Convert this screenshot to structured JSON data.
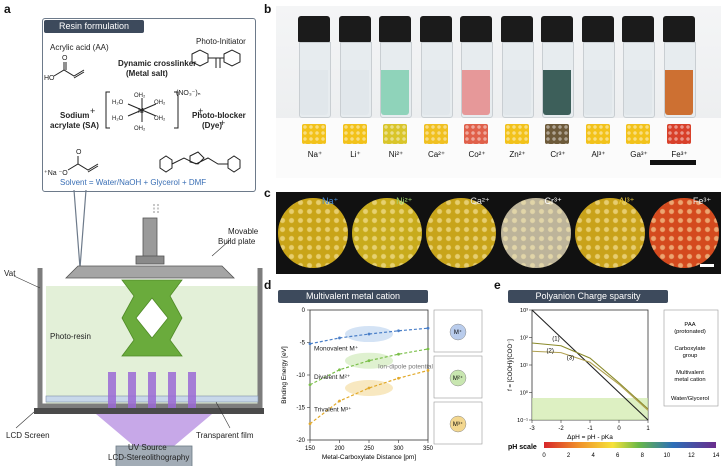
{
  "panels": {
    "a": {
      "letter": "a",
      "title": "Resin formulation",
      "acrylic_acid": "Acrylic acid (AA)",
      "crosslinker": "Dynamic crosslinker",
      "crosslinker_sub": "(Metal salt)",
      "photo_initiator": "Photo-Initiator",
      "sodium": "Sodium",
      "sodium2": "acrylate (SA)",
      "photo_blocker": "Photo-blocker",
      "photo_blocker_sub": "(Dye)",
      "nitrate": "(NO₃⁻)ₙ",
      "solvent": "Solvent = Water/NaOH + Glycerol + DMF",
      "movable": "Movable",
      "build_plate": "Build plate",
      "vat": "Vat",
      "photo_resin": "Photo-resin",
      "lcd_screen": "LCD Screen",
      "transparent_film": "Transparent film",
      "uv_source": "UV Source",
      "caption": "LCD-Stereolithography"
    },
    "b": {
      "letter": "b",
      "ions": [
        "Na⁺",
        "Li⁺",
        "Ni²⁺",
        "Ca²⁺",
        "Co²⁺",
        "Zn²⁺",
        "Cr³⁺",
        "Al³⁺",
        "Ga³⁺",
        "Fe³⁺"
      ],
      "vial_colors": [
        "#dfe6ea",
        "#dfe6ea",
        "#7fcfb0",
        "#dfe6ea",
        "#e58a8a",
        "#dfe6ea",
        "#1f4640",
        "#dfe6ea",
        "#dfe6ea",
        "#c85a10"
      ],
      "sample_colors": [
        "#f2c21a",
        "#f2c21a",
        "#d9c52a",
        "#f0c020",
        "#e0604a",
        "#f2c21a",
        "#6d5a3a",
        "#f2c21a",
        "#f2c21a",
        "#d8402a"
      ]
    },
    "c": {
      "letter": "c",
      "ions": [
        "Na⁺",
        "Ni²⁺",
        "Ca²⁺",
        "Cr³⁺",
        "Al³⁺",
        "Fe³⁺"
      ],
      "ion_colors": [
        "#4a8fd8",
        "#9fd46a",
        "#e8e8e8",
        "#ffffff",
        "#e8c63a",
        "#e8e8e8"
      ],
      "disc_colors": [
        "#c9a418",
        "#c8ab1c",
        "#c8a41a",
        "#bdb49a",
        "#c9a21a",
        "#d44a1e"
      ]
    },
    "d": {
      "letter": "d",
      "title": "Multivalent metal cation",
      "ylabel": "Binding Energy [eV]",
      "xlabel": "Metal-Carboxylate Distance [pm]",
      "monovalent": "Monovalent M⁺",
      "divalent": "Divalent M²⁺",
      "trivalent": "Trivalent M³⁺",
      "ion_dipole": "Ion-dipole potential",
      "schemes": [
        "M⁺",
        "M²⁺",
        "M³⁺"
      ]
    },
    "e": {
      "letter": "e",
      "title": "Polyanion Charge sparsity",
      "ylabel": "f = [COOH]/[COO⁻]",
      "xlabel": "ΔpH = pH - pKa",
      "curve_labels": [
        "(1)",
        "(2)",
        "(3)"
      ],
      "legend": [
        "PAA",
        "(protonated)",
        "Carboxylate",
        "group",
        "Multivalent",
        "metal cation",
        "Water/Glycerol"
      ],
      "ph_label": "pH scale"
    }
  },
  "chart_data": [
    {
      "type": "line",
      "title": "Multivalent metal cation",
      "xlabel": "Metal-Carboxylate Distance [pm]",
      "ylabel": "Binding Energy [eV]",
      "xlim": [
        150,
        350
      ],
      "ylim": [
        -20,
        0
      ],
      "x_ticks": [
        150,
        200,
        250,
        300,
        350
      ],
      "y_ticks": [
        -20,
        -15,
        -10,
        -5,
        0
      ],
      "series": [
        {
          "name": "Monovalent M⁺",
          "x": [
            150,
            200,
            250,
            300,
            350
          ],
          "y": [
            -5.2,
            -4.3,
            -3.7,
            -3.2,
            -2.8
          ]
        },
        {
          "name": "Divalent M²⁺",
          "x": [
            150,
            200,
            250,
            300,
            350
          ],
          "y": [
            -11.5,
            -9.2,
            -7.8,
            -6.8,
            -6.0
          ]
        },
        {
          "name": "Trivalent M³⁺",
          "x": [
            150,
            200,
            250,
            300,
            350
          ],
          "y": [
            -17.5,
            -14.0,
            -12.0,
            -10.5,
            -9.3
          ]
        }
      ]
    },
    {
      "type": "line",
      "title": "Polyanion Charge sparsity",
      "xlabel": "ΔpH = pH - pKa",
      "ylabel": "f = [COOH]/[COO⁻]",
      "xlim": [
        -3,
        1
      ],
      "ylim_log10": [
        -1,
        3
      ],
      "x_ticks": [
        -3,
        -2,
        -1,
        0,
        1
      ],
      "y_ticks": [
        "10⁻¹",
        "10⁰",
        "10¹",
        "10²",
        "10³"
      ],
      "y_scale": "log",
      "series": [
        {
          "name": "(1)",
          "x": [
            -3,
            -2,
            -1,
            0,
            1
          ],
          "log10y": [
            3.0,
            2.0,
            1.0,
            0.0,
            -1.0
          ]
        },
        {
          "name": "(2)",
          "x": [
            -3,
            -2,
            -1,
            0,
            1
          ],
          "log10y": [
            1.8,
            1.7,
            1.25,
            0.35,
            -0.6
          ]
        },
        {
          "name": "(3)",
          "x": [
            -3,
            -2,
            -1,
            0,
            1
          ],
          "log10y": [
            1.5,
            1.45,
            1.1,
            0.3,
            -0.65
          ]
        }
      ],
      "ph_scale_ticks": [
        0,
        2,
        4,
        6,
        8,
        10,
        12,
        14
      ]
    }
  ]
}
